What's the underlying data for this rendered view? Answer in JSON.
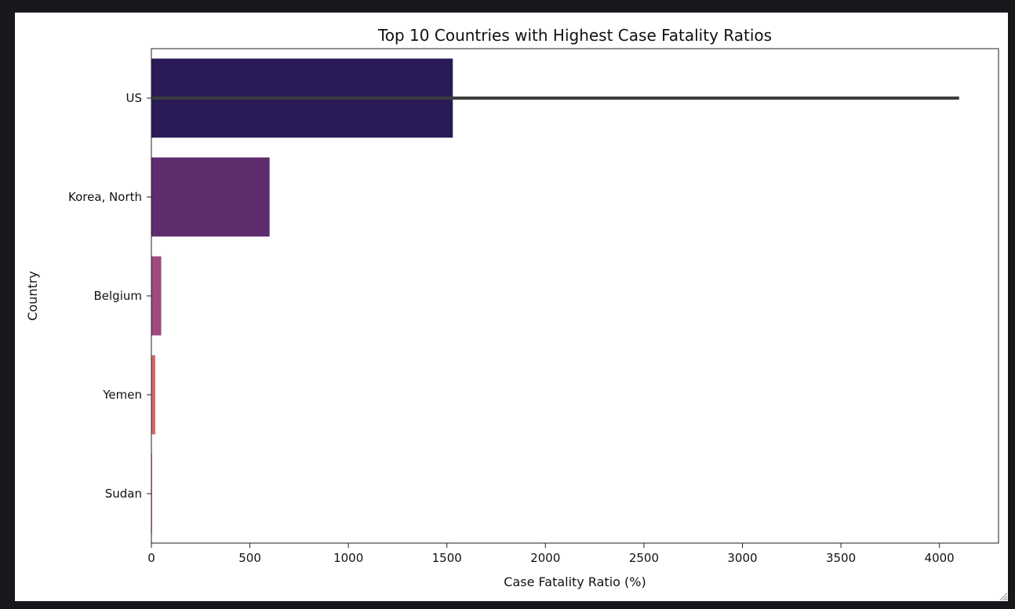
{
  "chart_data": {
    "type": "bar",
    "orientation": "horizontal",
    "title": "Top 10 Countries with Highest Case Fatality Ratios",
    "xlabel": "Case Fatality Ratio (%)",
    "ylabel": "Country",
    "categories": [
      "US",
      "Korea, North",
      "Belgium",
      "Yemen",
      "Sudan"
    ],
    "values": [
      1530,
      600,
      50,
      20,
      2
    ],
    "error_bars": [
      {
        "category": "US",
        "low": 0,
        "high": 4100
      }
    ],
    "xlim": [
      0,
      4300
    ],
    "xticks": [
      0,
      500,
      1000,
      1500,
      2000,
      2500,
      3000,
      3500,
      4000
    ],
    "colors": [
      "#2a1a55",
      "#5e2d6e",
      "#a04a7e",
      "#d46a6a",
      "#f08a5a"
    ],
    "error_color": "#3c3c3c",
    "grid": false,
    "legend": "none"
  }
}
